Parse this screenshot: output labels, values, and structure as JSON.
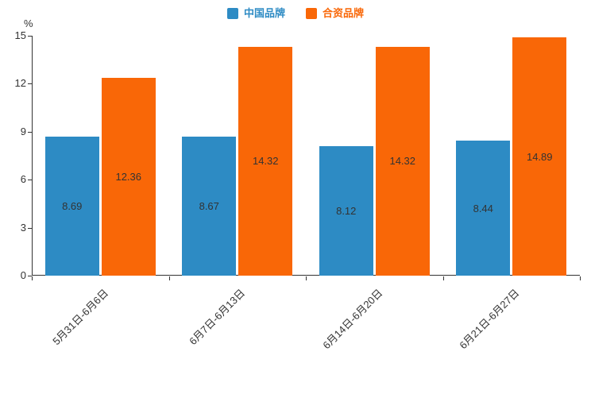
{
  "chart_data": {
    "type": "bar",
    "title": "",
    "unit": "%",
    "categories": [
      "5月31日-6月6日",
      "6月7日-6月13日",
      "6月14日-6月20日",
      "6月21日-6月27日"
    ],
    "series": [
      {
        "name": "中国品牌",
        "color": "#2d8bc4",
        "values": [
          8.69,
          8.67,
          8.12,
          8.44
        ]
      },
      {
        "name": "合资品牌",
        "color": "#f96707",
        "values": [
          12.36,
          14.32,
          14.32,
          14.89
        ]
      }
    ],
    "ylim": [
      0,
      15
    ],
    "yticks": [
      0,
      3,
      6,
      9,
      12,
      15
    ],
    "grid": false,
    "legend_position": "top",
    "value_labels": "inside-center",
    "xlabel": "",
    "ylabel": "%"
  },
  "legend": {
    "items": [
      {
        "label": "中国品牌",
        "color": "#2d8bc4"
      },
      {
        "label": "合资品牌",
        "color": "#f96707"
      }
    ]
  },
  "colors": {
    "axis": "#333333",
    "text": "#333333",
    "background": "#ffffff"
  }
}
